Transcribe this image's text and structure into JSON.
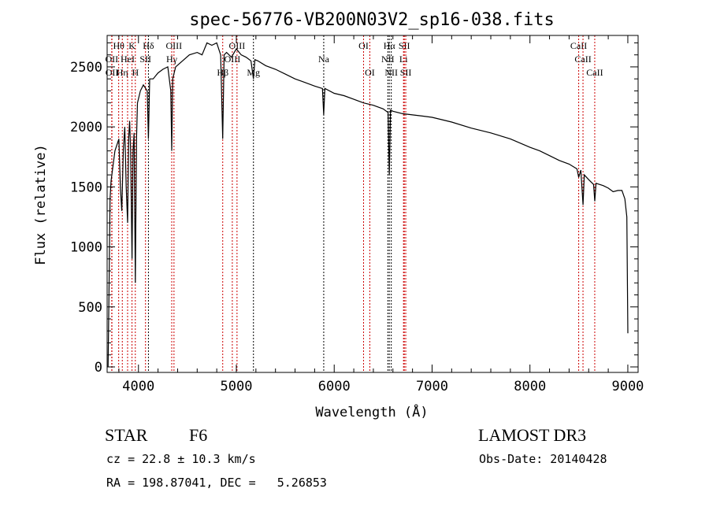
{
  "chart_data": {
    "type": "line",
    "title": "spec-56776-VB200N03V2_sp16-038.fits",
    "xlabel": "Wavelength (Å)",
    "ylabel": "Flux (relative)",
    "xlim": [
      3680,
      9105
    ],
    "ylim": [
      -46,
      2762
    ],
    "xticks": [
      4000,
      5000,
      6000,
      7000,
      8000,
      9000
    ],
    "yticks": [
      0,
      500,
      1000,
      1500,
      2000,
      2500
    ],
    "grid": false,
    "series": [
      {
        "name": "spectrum",
        "x": [
          3690,
          3700,
          3710,
          3720,
          3760,
          3800,
          3815,
          3830,
          3845,
          3860,
          3875,
          3889,
          3900,
          3910,
          3920,
          3934,
          3945,
          3955,
          3968,
          3980,
          3990,
          4020,
          4050,
          4090,
          4102,
          4115,
          4150,
          4200,
          4250,
          4300,
          4330,
          4340,
          4350,
          4380,
          4450,
          4520,
          4600,
          4650,
          4700,
          4750,
          4800,
          4840,
          4861,
          4875,
          4900,
          4950,
          5000,
          5050,
          5100,
          5150,
          5175,
          5190,
          5220,
          5300,
          5400,
          5500,
          5600,
          5700,
          5800,
          5880,
          5893,
          5905,
          6000,
          6100,
          6200,
          6300,
          6400,
          6500,
          6550,
          6563,
          6575,
          6600,
          6700,
          6800,
          6900,
          7000,
          7200,
          7400,
          7600,
          7800,
          8000,
          8100,
          8200,
          8300,
          8400,
          8480,
          8498,
          8520,
          8542,
          8555,
          8600,
          8650,
          8662,
          8675,
          8750,
          8800,
          8850,
          8900,
          8940,
          8970,
          8990,
          9000
        ],
        "y": [
          0,
          700,
          1400,
          1550,
          1800,
          1900,
          1500,
          1300,
          1800,
          2000,
          1500,
          1200,
          1900,
          2050,
          1800,
          900,
          1800,
          1950,
          700,
          1900,
          2200,
          2300,
          2350,
          2300,
          1900,
          2400,
          2400,
          2450,
          2480,
          2500,
          2300,
          1800,
          2400,
          2500,
          2550,
          2600,
          2620,
          2600,
          2700,
          2680,
          2700,
          2600,
          1900,
          2600,
          2620,
          2580,
          2650,
          2600,
          2580,
          2550,
          2400,
          2560,
          2550,
          2510,
          2480,
          2440,
          2400,
          2370,
          2340,
          2320,
          2100,
          2320,
          2280,
          2260,
          2230,
          2200,
          2180,
          2150,
          2120,
          1600,
          2140,
          2130,
          2110,
          2100,
          2090,
          2080,
          2040,
          1990,
          1950,
          1900,
          1830,
          1800,
          1760,
          1720,
          1690,
          1650,
          1580,
          1640,
          1350,
          1600,
          1560,
          1520,
          1380,
          1530,
          1510,
          1490,
          1460,
          1470,
          1470,
          1400,
          1250,
          280
        ]
      }
    ],
    "lines": [
      {
        "label": "OII",
        "w": 3727,
        "row": 2,
        "color": "#cc0000"
      },
      {
        "label": "OII",
        "w": 3729,
        "row": 3,
        "color": "#cc0000"
      },
      {
        "label": "Hθ",
        "w": 3798,
        "row": 1,
        "color": "#cc0000"
      },
      {
        "label": "Hη",
        "w": 3835,
        "row": 3,
        "color": "#cc0000"
      },
      {
        "label": "HeI",
        "w": 3889,
        "row": 2,
        "color": "#cc0000"
      },
      {
        "label": "K",
        "w": 3934,
        "row": 1,
        "color": "#cc0000"
      },
      {
        "label": "H",
        "w": 3968,
        "row": 3,
        "color": "#cc0000"
      },
      {
        "label": "SII",
        "w": 4072,
        "row": 2,
        "color": "#cc0000"
      },
      {
        "label": "Hδ",
        "w": 4102,
        "row": 1,
        "color": "#000000"
      },
      {
        "label": "Hγ",
        "w": 4340,
        "row": 2,
        "color": "#cc0000"
      },
      {
        "label": "OIII",
        "w": 4363,
        "row": 1,
        "color": "#cc0000"
      },
      {
        "label": "Hβ",
        "w": 4861,
        "row": 3,
        "color": "#cc0000"
      },
      {
        "label": "OIII",
        "w": 4959,
        "row": 2,
        "color": "#cc0000"
      },
      {
        "label": "OIII",
        "w": 5007,
        "row": 1,
        "color": "#cc0000"
      },
      {
        "label": "Mg",
        "w": 5175,
        "row": 3,
        "color": "#000000"
      },
      {
        "label": "Na",
        "w": 5893,
        "row": 2,
        "color": "#000000"
      },
      {
        "label": "OI",
        "w": 6300,
        "row": 1,
        "color": "#cc0000"
      },
      {
        "label": "OI",
        "w": 6364,
        "row": 3,
        "color": "#cc0000"
      },
      {
        "label": "NII",
        "w": 6548,
        "row": 2,
        "color": "#000000"
      },
      {
        "label": "Hα",
        "w": 6563,
        "row": 1,
        "color": "#000000"
      },
      {
        "label": "NII",
        "w": 6583,
        "row": 3,
        "color": "#000000"
      },
      {
        "label": "Li",
        "w": 6708,
        "row": 2,
        "color": "#cc0000"
      },
      {
        "label": "SII",
        "w": 6716,
        "row": 1,
        "color": "#cc0000"
      },
      {
        "label": "SII",
        "w": 6731,
        "row": 3,
        "color": "#cc0000"
      },
      {
        "label": "CaII",
        "w": 8498,
        "row": 1,
        "color": "#cc0000"
      },
      {
        "label": "CaII",
        "w": 8542,
        "row": 2,
        "color": "#cc0000"
      },
      {
        "label": "CaII",
        "w": 8662,
        "row": 3,
        "color": "#cc0000"
      }
    ]
  },
  "info": {
    "object_class": "STAR",
    "subclass": "F6",
    "survey": "LAMOST DR3",
    "cz": "cz = 22.8 ± 10.3 km/s",
    "obs_date": "Obs-Date: 20140428",
    "radec": "RA = 198.87041, DEC =   5.26853"
  }
}
